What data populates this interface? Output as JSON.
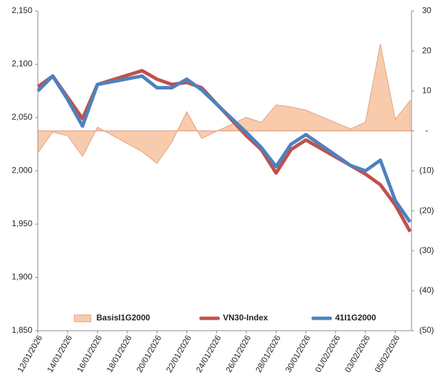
{
  "chart_data": {
    "type": "line",
    "x": [
      "12/01/2026",
      "13/01/2026",
      "14/01/2026",
      "15/01/2026",
      "16/01/2026",
      "19/01/2026",
      "20/01/2026",
      "21/01/2026",
      "22/01/2026",
      "23/01/2026",
      "26/01/2026",
      "27/01/2026",
      "28/01/2026",
      "29/01/2026",
      "30/01/2026",
      "02/02/2026",
      "03/02/2026",
      "04/02/2026",
      "05/02/2026",
      "06/02/2026"
    ],
    "xlim": [
      "12/01/2026",
      "06/02/2026"
    ],
    "xticks": [
      "12/01/2026",
      "14/01/2026",
      "16/01/2026",
      "18/01/2026",
      "20/01/2026",
      "22/01/2026",
      "24/01/2026",
      "26/01/2026",
      "28/01/2026",
      "30/01/2026",
      "01/02/2026",
      "03/02/2026",
      "05/02/2026"
    ],
    "series": [
      {
        "name": "BasisI1G2000",
        "type": "area",
        "axis": "y2",
        "color": "#f8cbad",
        "values": [
          -5.5,
          -0.3,
          -1.2,
          -6.4,
          0.9,
          -5.2,
          -8.1,
          -2.8,
          4.8,
          -1.9,
          3.4,
          2.1,
          6.5,
          6.0,
          5.2,
          0.5,
          2.2,
          21.7,
          2.9,
          7.6
        ]
      },
      {
        "name": "VN30-Index",
        "type": "line",
        "color": "#c0504d",
        "values": [
          2079,
          2089,
          2069,
          2049,
          2081,
          2094,
          2086,
          2081,
          2083,
          2078,
          2033,
          2020,
          1998,
          2020,
          2029,
          2005,
          1997,
          1987,
          1968,
          1943
        ]
      },
      {
        "name": "41I1G2000",
        "type": "line",
        "color": "#4f81bd",
        "values": [
          2075,
          2089,
          2067,
          2042,
          2081,
          2089,
          2078,
          2078,
          2086,
          2076,
          2036,
          2022,
          2004,
          2025,
          2034,
          2005,
          2000,
          2010,
          1972,
          1952
        ]
      }
    ],
    "ylim": [
      1850,
      2150
    ],
    "yticks": [
      {
        "value": 1850,
        "label": "1,850"
      },
      {
        "value": 1900,
        "label": "1,900"
      },
      {
        "value": 1950,
        "label": "1,950"
      },
      {
        "value": 2000,
        "label": "2,000"
      },
      {
        "value": 2050,
        "label": "2,050"
      },
      {
        "value": 2100,
        "label": "2,100"
      },
      {
        "value": 2150,
        "label": "2,150"
      }
    ],
    "y2lim": [
      -50,
      30
    ],
    "y2ticks": [
      {
        "value": -50,
        "label": "(50)"
      },
      {
        "value": -40,
        "label": "(40)"
      },
      {
        "value": -30,
        "label": "(30)"
      },
      {
        "value": -20,
        "label": "(20)"
      },
      {
        "value": -10,
        "label": "(10)"
      },
      {
        "value": 0,
        "label": "-"
      },
      10,
      20,
      30
    ],
    "grid": false,
    "legend": "bottom"
  }
}
